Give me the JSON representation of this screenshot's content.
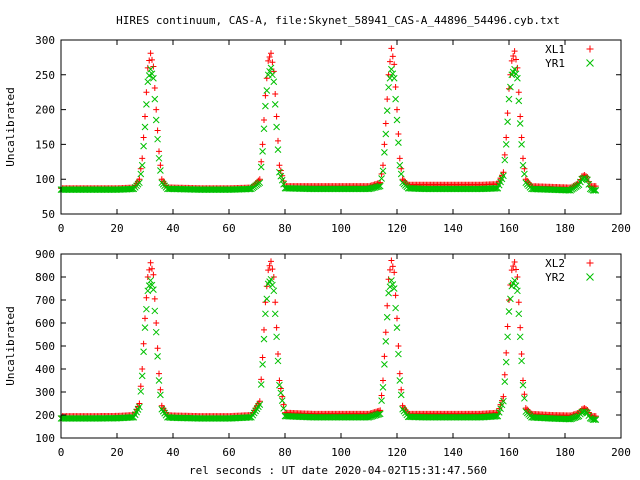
{
  "title": "HIRES continuum, CAS-A, file:Skynet_58941_CAS-A_44896_54496.cyb.txt",
  "xlabel": "rel seconds : UT date 2020-04-02T15:31:47.560",
  "colors": {
    "series1": "#ff0000",
    "series2": "#00c000",
    "frame": "#000000"
  },
  "chart_data": [
    {
      "type": "scatter",
      "ylabel": "Uncalibrated",
      "xlim": [
        0,
        200
      ],
      "ylim": [
        50,
        300
      ],
      "xticks": [
        "0",
        "20",
        "40",
        "60",
        "80",
        "100",
        "120",
        "140",
        "160",
        "180",
        "200"
      ],
      "yticks": [
        "50",
        "100",
        "150",
        "200",
        "250",
        "300"
      ],
      "grid": false,
      "legend": "top-right",
      "series": [
        {
          "name": "XL1",
          "marker": "plus",
          "x": [
            0,
            10,
            20,
            26,
            28,
            29,
            30,
            31,
            32,
            33,
            34,
            35,
            36,
            38,
            40,
            50,
            60,
            68,
            71,
            72,
            73,
            74,
            75,
            76,
            77,
            78,
            80,
            90,
            100,
            110,
            114,
            115,
            116,
            117,
            118,
            119,
            120,
            121,
            122,
            124,
            130,
            140,
            150,
            156,
            158,
            159,
            160,
            161,
            162,
            163,
            164,
            165,
            166,
            168,
            175,
            182,
            185,
            186,
            187,
            188,
            189,
            190,
            191
          ],
          "y": [
            87,
            87,
            87,
            88,
            100,
            130,
            190,
            260,
            281,
            262,
            200,
            140,
            100,
            88,
            88,
            87,
            87,
            88,
            100,
            150,
            220,
            270,
            281,
            255,
            190,
            120,
            90,
            90,
            90,
            90,
            95,
            120,
            180,
            250,
            288,
            265,
            200,
            130,
            100,
            92,
            92,
            92,
            92,
            93,
            110,
            160,
            230,
            270,
            284,
            260,
            190,
            130,
            100,
            90,
            89,
            88,
            95,
            104,
            106,
            103,
            90,
            90,
            90
          ]
        },
        {
          "name": "YR1",
          "marker": "cross",
          "x": [
            0,
            10,
            20,
            26,
            28,
            29,
            30,
            31,
            32,
            33,
            34,
            35,
            36,
            38,
            40,
            50,
            60,
            68,
            71,
            72,
            73,
            74,
            75,
            76,
            77,
            78,
            80,
            90,
            100,
            110,
            114,
            115,
            116,
            117,
            118,
            119,
            120,
            121,
            122,
            124,
            130,
            140,
            150,
            156,
            158,
            159,
            160,
            161,
            162,
            163,
            164,
            165,
            166,
            168,
            175,
            182,
            185,
            186,
            187,
            188,
            189,
            190,
            191
          ],
          "y": [
            85,
            85,
            85,
            86,
            95,
            120,
            175,
            240,
            258,
            245,
            185,
            130,
            95,
            86,
            86,
            85,
            85,
            86,
            95,
            140,
            205,
            250,
            260,
            240,
            175,
            110,
            87,
            86,
            86,
            86,
            90,
            112,
            165,
            232,
            258,
            245,
            185,
            120,
            95,
            87,
            86,
            86,
            86,
            87,
            105,
            150,
            215,
            250,
            258,
            245,
            180,
            120,
            95,
            86,
            85,
            84,
            92,
            100,
            102,
            99,
            86,
            84,
            84
          ]
        }
      ]
    },
    {
      "type": "scatter",
      "ylabel": "Uncalibrated",
      "xlim": [
        0,
        200
      ],
      "ylim": [
        100,
        900
      ],
      "xticks": [
        "0",
        "20",
        "40",
        "60",
        "80",
        "100",
        "120",
        "140",
        "160",
        "180",
        "200"
      ],
      "yticks": [
        "100",
        "200",
        "300",
        "400",
        "500",
        "600",
        "700",
        "800",
        "900"
      ],
      "grid": false,
      "legend": "top-right",
      "series": [
        {
          "name": "XL2",
          "marker": "plus",
          "x": [
            0,
            10,
            20,
            26,
            28,
            29,
            30,
            31,
            32,
            33,
            34,
            35,
            36,
            38,
            40,
            50,
            60,
            68,
            71,
            72,
            73,
            74,
            75,
            76,
            77,
            78,
            80,
            90,
            100,
            110,
            114,
            115,
            116,
            117,
            118,
            119,
            120,
            121,
            122,
            124,
            130,
            140,
            150,
            156,
            158,
            159,
            160,
            161,
            162,
            163,
            164,
            165,
            166,
            168,
            175,
            182,
            185,
            186,
            187,
            188,
            189,
            190,
            191
          ],
          "y": [
            195,
            195,
            196,
            200,
            250,
            400,
            620,
            800,
            862,
            810,
            600,
            380,
            240,
            200,
            198,
            195,
            195,
            200,
            260,
            450,
            690,
            830,
            868,
            800,
            580,
            350,
            210,
            205,
            205,
            205,
            220,
            350,
            560,
            790,
            872,
            820,
            620,
            380,
            240,
            205,
            205,
            205,
            205,
            210,
            280,
            470,
            700,
            830,
            865,
            800,
            580,
            350,
            230,
            205,
            200,
            198,
            210,
            225,
            230,
            222,
            200,
            195,
            195
          ]
        },
        {
          "name": "YR2",
          "marker": "cross",
          "x": [
            0,
            10,
            20,
            26,
            28,
            29,
            30,
            31,
            32,
            33,
            34,
            35,
            36,
            38,
            40,
            50,
            60,
            68,
            71,
            72,
            73,
            74,
            75,
            76,
            77,
            78,
            80,
            90,
            100,
            110,
            114,
            115,
            116,
            117,
            118,
            119,
            120,
            121,
            122,
            124,
            130,
            140,
            150,
            156,
            158,
            159,
            160,
            161,
            162,
            163,
            164,
            165,
            166,
            168,
            175,
            182,
            185,
            186,
            187,
            188,
            189,
            190,
            191
          ],
          "y": [
            185,
            185,
            186,
            190,
            235,
            370,
            580,
            740,
            785,
            745,
            560,
            350,
            225,
            190,
            188,
            185,
            185,
            190,
            245,
            420,
            640,
            770,
            790,
            740,
            540,
            330,
            195,
            190,
            190,
            190,
            205,
            320,
            520,
            730,
            785,
            750,
            580,
            350,
            225,
            192,
            190,
            190,
            190,
            195,
            260,
            430,
            650,
            760,
            785,
            740,
            540,
            330,
            215,
            190,
            185,
            182,
            195,
            212,
            216,
            208,
            186,
            180,
            180
          ]
        }
      ]
    }
  ]
}
